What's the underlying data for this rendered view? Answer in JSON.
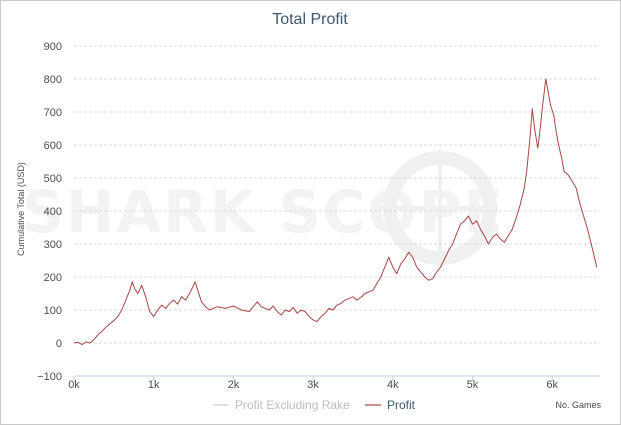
{
  "chart_data": {
    "type": "line",
    "title": "Total Profit",
    "xlabel": "No. Games",
    "ylabel": "Cumulative Total (USD)",
    "xlim": [
      0,
      6600
    ],
    "ylim": [
      -100,
      900
    ],
    "x_ticks": [
      {
        "v": 0,
        "label": "0k"
      },
      {
        "v": 1000,
        "label": "1k"
      },
      {
        "v": 2000,
        "label": "2k"
      },
      {
        "v": 3000,
        "label": "3k"
      },
      {
        "v": 4000,
        "label": "4k"
      },
      {
        "v": 5000,
        "label": "5k"
      },
      {
        "v": 6000,
        "label": "6k"
      }
    ],
    "y_ticks": [
      {
        "v": -100,
        "label": "−100"
      },
      {
        "v": 0,
        "label": "0"
      },
      {
        "v": 100,
        "label": "100"
      },
      {
        "v": 200,
        "label": "200"
      },
      {
        "v": 300,
        "label": "300"
      },
      {
        "v": 400,
        "label": "400"
      },
      {
        "v": 500,
        "label": "500"
      },
      {
        "v": 600,
        "label": "600"
      },
      {
        "v": 700,
        "label": "700"
      },
      {
        "v": 800,
        "label": "800"
      },
      {
        "v": 900,
        "label": "900"
      }
    ],
    "grid": "horizontal dashed",
    "legend_position": "bottom",
    "series": [
      {
        "name": "Profit Excluding Rake",
        "color": "#cccccc",
        "points": []
      },
      {
        "name": "Profit",
        "color": "#aa4643",
        "points": [
          [
            0,
            0
          ],
          [
            50,
            2
          ],
          [
            100,
            -5
          ],
          [
            150,
            3
          ],
          [
            200,
            0
          ],
          [
            250,
            10
          ],
          [
            300,
            25
          ],
          [
            350,
            35
          ],
          [
            400,
            48
          ],
          [
            450,
            58
          ],
          [
            500,
            68
          ],
          [
            550,
            80
          ],
          [
            600,
            100
          ],
          [
            650,
            130
          ],
          [
            700,
            160
          ],
          [
            730,
            185
          ],
          [
            760,
            165
          ],
          [
            800,
            150
          ],
          [
            850,
            175
          ],
          [
            900,
            140
          ],
          [
            950,
            95
          ],
          [
            1000,
            80
          ],
          [
            1050,
            100
          ],
          [
            1100,
            115
          ],
          [
            1150,
            105
          ],
          [
            1200,
            120
          ],
          [
            1250,
            130
          ],
          [
            1300,
            118
          ],
          [
            1350,
            140
          ],
          [
            1400,
            130
          ],
          [
            1450,
            150
          ],
          [
            1500,
            175
          ],
          [
            1520,
            185
          ],
          [
            1560,
            155
          ],
          [
            1600,
            125
          ],
          [
            1650,
            110
          ],
          [
            1700,
            100
          ],
          [
            1800,
            110
          ],
          [
            1900,
            105
          ],
          [
            2000,
            112
          ],
          [
            2100,
            100
          ],
          [
            2200,
            95
          ],
          [
            2250,
            110
          ],
          [
            2300,
            125
          ],
          [
            2350,
            110
          ],
          [
            2400,
            105
          ],
          [
            2450,
            100
          ],
          [
            2500,
            112
          ],
          [
            2550,
            95
          ],
          [
            2600,
            85
          ],
          [
            2650,
            100
          ],
          [
            2700,
            95
          ],
          [
            2750,
            108
          ],
          [
            2800,
            90
          ],
          [
            2850,
            100
          ],
          [
            2900,
            95
          ],
          [
            2950,
            80
          ],
          [
            3000,
            70
          ],
          [
            3050,
            65
          ],
          [
            3100,
            80
          ],
          [
            3150,
            90
          ],
          [
            3200,
            105
          ],
          [
            3250,
            100
          ],
          [
            3300,
            115
          ],
          [
            3350,
            120
          ],
          [
            3400,
            130
          ],
          [
            3450,
            135
          ],
          [
            3500,
            140
          ],
          [
            3550,
            130
          ],
          [
            3600,
            138
          ],
          [
            3650,
            150
          ],
          [
            3700,
            155
          ],
          [
            3750,
            160
          ],
          [
            3800,
            180
          ],
          [
            3850,
            200
          ],
          [
            3900,
            230
          ],
          [
            3950,
            260
          ],
          [
            4000,
            230
          ],
          [
            4050,
            210
          ],
          [
            4100,
            240
          ],
          [
            4150,
            255
          ],
          [
            4200,
            275
          ],
          [
            4250,
            260
          ],
          [
            4300,
            230
          ],
          [
            4350,
            215
          ],
          [
            4400,
            200
          ],
          [
            4450,
            190
          ],
          [
            4500,
            195
          ],
          [
            4550,
            215
          ],
          [
            4600,
            230
          ],
          [
            4650,
            255
          ],
          [
            4700,
            280
          ],
          [
            4750,
            300
          ],
          [
            4800,
            330
          ],
          [
            4850,
            360
          ],
          [
            4900,
            370
          ],
          [
            4950,
            385
          ],
          [
            5000,
            360
          ],
          [
            5050,
            370
          ],
          [
            5100,
            345
          ],
          [
            5150,
            325
          ],
          [
            5200,
            300
          ],
          [
            5250,
            320
          ],
          [
            5300,
            330
          ],
          [
            5350,
            315
          ],
          [
            5400,
            305
          ],
          [
            5450,
            325
          ],
          [
            5500,
            345
          ],
          [
            5550,
            380
          ],
          [
            5600,
            420
          ],
          [
            5650,
            470
          ],
          [
            5680,
            520
          ],
          [
            5720,
            620
          ],
          [
            5750,
            710
          ],
          [
            5780,
            650
          ],
          [
            5820,
            590
          ],
          [
            5850,
            650
          ],
          [
            5880,
            720
          ],
          [
            5920,
            800
          ],
          [
            5950,
            760
          ],
          [
            5980,
            720
          ],
          [
            6020,
            690
          ],
          [
            6050,
            640
          ],
          [
            6080,
            600
          ],
          [
            6120,
            560
          ],
          [
            6150,
            520
          ],
          [
            6200,
            510
          ],
          [
            6250,
            490
          ],
          [
            6300,
            470
          ],
          [
            6350,
            420
          ],
          [
            6400,
            380
          ],
          [
            6450,
            340
          ],
          [
            6500,
            290
          ],
          [
            6530,
            260
          ],
          [
            6560,
            230
          ]
        ]
      }
    ]
  },
  "watermark": "SHARK SCOPE"
}
